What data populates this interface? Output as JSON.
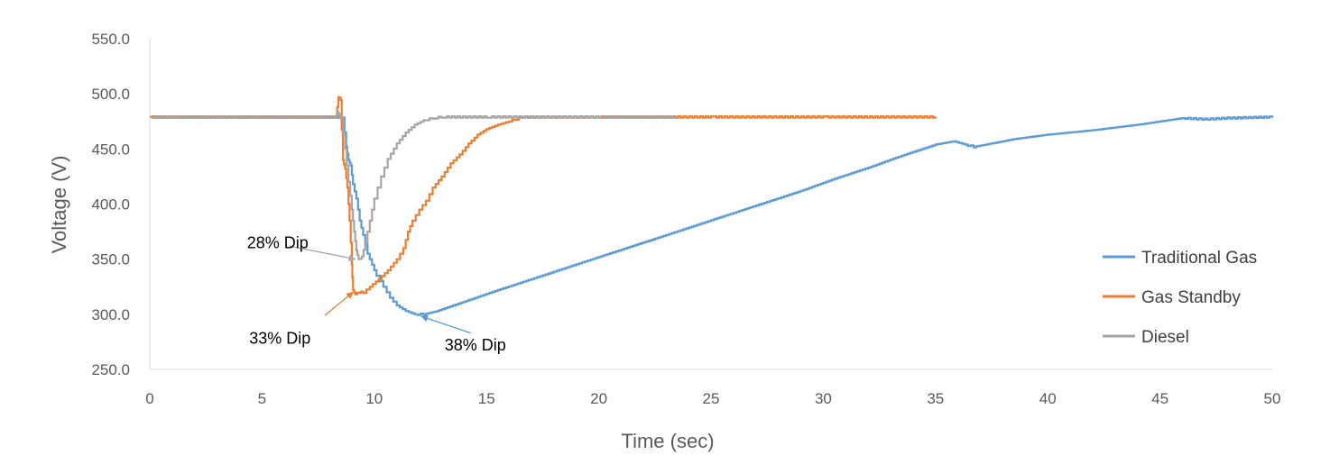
{
  "chart_data": {
    "type": "line",
    "xlabel": "Time (sec)",
    "ylabel": "Voltage (V)",
    "xlim": [
      0,
      50
    ],
    "ylim": [
      250,
      550
    ],
    "xticks": [
      "0",
      "5",
      "10",
      "15",
      "20",
      "25",
      "30",
      "35",
      "40",
      "45",
      "50"
    ],
    "yticks": [
      "550.0",
      "500.0",
      "450.0",
      "400.0",
      "350.0",
      "300.0",
      "250.0"
    ],
    "grid": false,
    "legend_position": "right",
    "series": [
      {
        "name": "Traditional Gas",
        "color": "#5B9BD5",
        "points": [
          [
            0,
            479
          ],
          [
            8.4,
            479
          ],
          [
            8.6,
            478
          ],
          [
            8.75,
            452
          ],
          [
            8.85,
            440
          ],
          [
            8.95,
            435
          ],
          [
            9.05,
            418
          ],
          [
            9.2,
            405
          ],
          [
            9.35,
            385
          ],
          [
            9.5,
            372
          ],
          [
            9.7,
            355
          ],
          [
            9.9,
            345
          ],
          [
            10.1,
            335
          ],
          [
            10.4,
            325
          ],
          [
            10.7,
            315
          ],
          [
            11.0,
            308
          ],
          [
            11.4,
            303
          ],
          [
            11.8,
            300
          ],
          [
            12.2,
            300
          ],
          [
            12.8,
            303
          ],
          [
            13.5,
            308
          ],
          [
            14.5,
            315
          ],
          [
            15.5,
            322
          ],
          [
            17,
            332
          ],
          [
            18.5,
            342
          ],
          [
            20,
            352
          ],
          [
            21.5,
            362
          ],
          [
            23,
            372
          ],
          [
            24.5,
            382
          ],
          [
            26,
            392
          ],
          [
            27.5,
            402
          ],
          [
            29,
            412
          ],
          [
            30.5,
            423
          ],
          [
            32,
            433
          ],
          [
            33.5,
            444
          ],
          [
            35,
            454
          ],
          [
            35.8,
            457
          ],
          [
            36.3,
            454
          ],
          [
            36.7,
            452
          ],
          [
            37.5,
            455
          ],
          [
            38.5,
            459
          ],
          [
            40,
            463
          ],
          [
            42,
            467
          ],
          [
            44,
            472
          ],
          [
            46,
            478
          ],
          [
            47,
            477
          ],
          [
            48,
            478
          ],
          [
            50,
            479
          ]
        ]
      },
      {
        "name": "Gas Standby",
        "color": "#ED7D31",
        "points": [
          [
            0,
            479
          ],
          [
            8.3,
            479
          ],
          [
            8.4,
            497
          ],
          [
            8.5,
            495
          ],
          [
            8.6,
            440
          ],
          [
            8.7,
            432
          ],
          [
            8.8,
            415
          ],
          [
            8.9,
            385
          ],
          [
            9.0,
            345
          ],
          [
            9.05,
            322
          ],
          [
            9.15,
            318
          ],
          [
            9.3,
            320
          ],
          [
            9.5,
            320
          ],
          [
            9.8,
            325
          ],
          [
            10.2,
            332
          ],
          [
            10.6,
            340
          ],
          [
            11.0,
            350
          ],
          [
            11.3,
            360
          ],
          [
            11.5,
            375
          ],
          [
            11.7,
            385
          ],
          [
            12.0,
            395
          ],
          [
            12.3,
            403
          ],
          [
            12.6,
            415
          ],
          [
            13.0,
            425
          ],
          [
            13.4,
            437
          ],
          [
            13.8,
            445
          ],
          [
            14.2,
            455
          ],
          [
            14.6,
            463
          ],
          [
            15.0,
            468
          ],
          [
            15.5,
            472
          ],
          [
            16.0,
            475
          ],
          [
            16.3,
            477
          ],
          [
            16.6,
            479
          ],
          [
            20,
            479
          ],
          [
            25,
            479
          ],
          [
            30,
            479
          ],
          [
            35,
            479
          ]
        ]
      },
      {
        "name": "Diesel",
        "color": "#A5A5A5",
        "points": [
          [
            0,
            479
          ],
          [
            8.3,
            479
          ],
          [
            8.35,
            484
          ],
          [
            8.45,
            480
          ],
          [
            8.55,
            478
          ],
          [
            8.7,
            450
          ],
          [
            8.85,
            420
          ],
          [
            9.0,
            395
          ],
          [
            9.1,
            375
          ],
          [
            9.2,
            358
          ],
          [
            9.3,
            350
          ],
          [
            9.45,
            352
          ],
          [
            9.6,
            365
          ],
          [
            9.8,
            385
          ],
          [
            10.0,
            405
          ],
          [
            10.3,
            425
          ],
          [
            10.6,
            441
          ],
          [
            11.0,
            455
          ],
          [
            11.4,
            465
          ],
          [
            11.8,
            472
          ],
          [
            12.2,
            476
          ],
          [
            12.6,
            478
          ],
          [
            13.0,
            479
          ],
          [
            15,
            479
          ],
          [
            20,
            479
          ],
          [
            23.4,
            479
          ]
        ]
      }
    ],
    "annotations": [
      {
        "text": "28% Dip",
        "text_x": 5.7,
        "text_y": 365,
        "arrow_from": [
          6.2,
          362
        ],
        "arrow_to": [
          9.15,
          350
        ],
        "color": "#A5A5A5"
      },
      {
        "text": "33% Dip",
        "text_x": 5.8,
        "text_y": 278,
        "arrow_from": [
          7.8,
          299
        ],
        "arrow_to": [
          9.05,
          320
        ],
        "color": "#ED7D31"
      },
      {
        "text": "38% Dip",
        "text_x": 14.5,
        "text_y": 272,
        "arrow_from": [
          14.3,
          283
        ],
        "arrow_to": [
          12.1,
          298
        ],
        "color": "#5B9BD5"
      }
    ]
  }
}
